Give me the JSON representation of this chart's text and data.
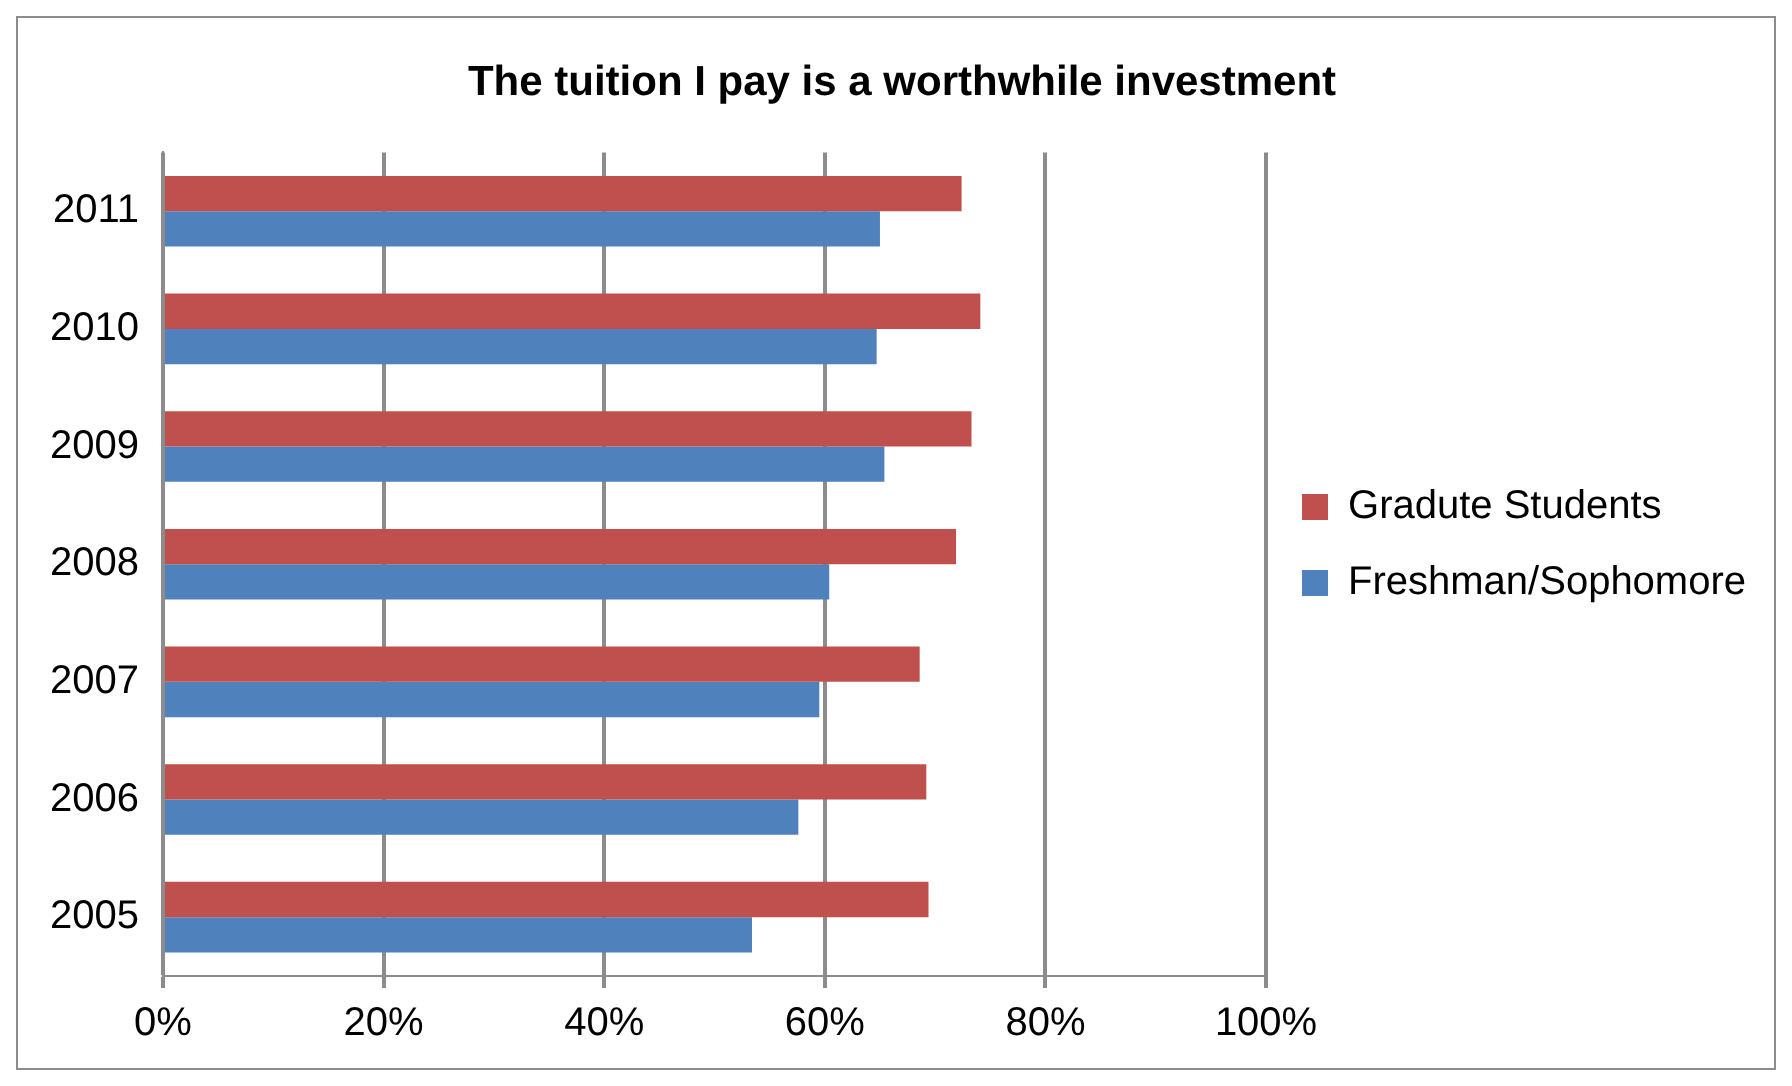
{
  "chart_data": {
    "type": "bar",
    "orientation": "horizontal",
    "title": "The tuition I pay is a worthwhile investment",
    "categories": [
      "2011",
      "2010",
      "2009",
      "2008",
      "2007",
      "2006",
      "2005"
    ],
    "series": [
      {
        "name": "Gradute Students",
        "color": "#c0504d",
        "values": [
          72.4,
          74.1,
          73.3,
          71.9,
          68.6,
          69.2,
          69.4
        ]
      },
      {
        "name": "Freshman/Sophomore",
        "color": "#4f81bd",
        "values": [
          65,
          64.7,
          65.4,
          60.4,
          59.5,
          57.6,
          53.4
        ]
      }
    ],
    "xlim": [
      0,
      100
    ],
    "xticks": [
      {
        "value": 0,
        "label": "0%"
      },
      {
        "value": 20,
        "label": "20%"
      },
      {
        "value": 40,
        "label": "40%"
      },
      {
        "value": 60,
        "label": "60%"
      },
      {
        "value": 80,
        "label": "80%"
      },
      {
        "value": 100,
        "label": "100%"
      }
    ],
    "grid": "x",
    "legend": "right"
  }
}
